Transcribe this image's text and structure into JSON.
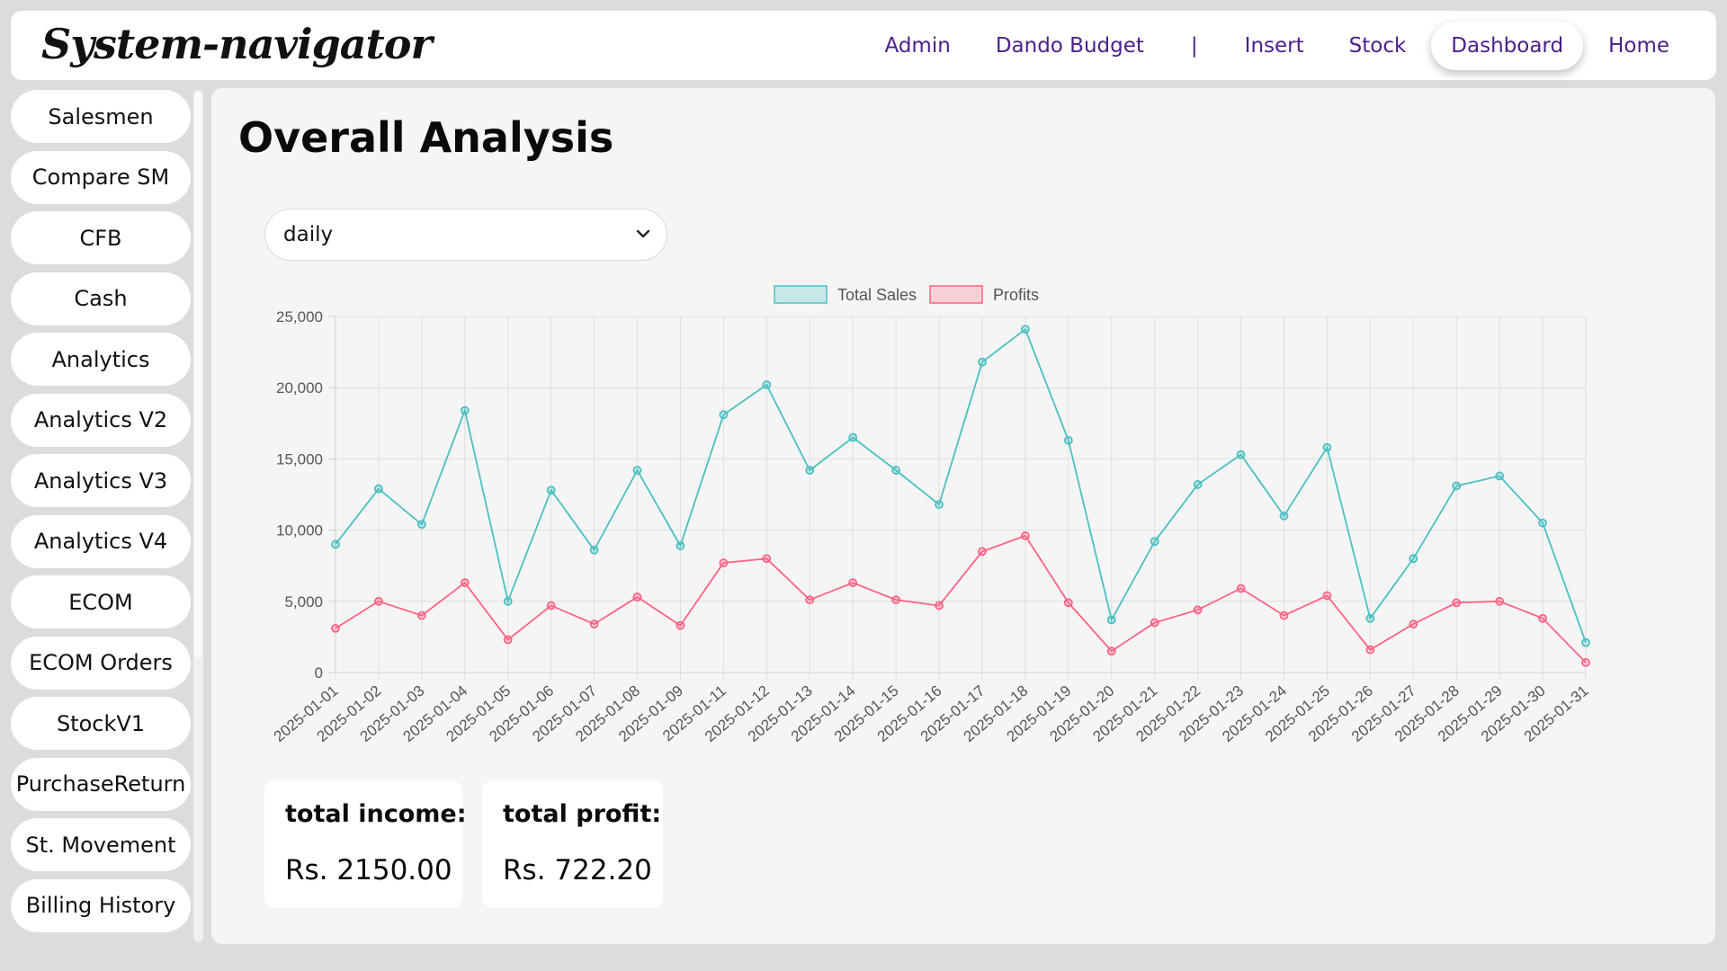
{
  "app": {
    "brand": "System-navigator"
  },
  "nav": {
    "items": [
      "Admin",
      "Dando Budget",
      "|",
      "Insert",
      "Stock",
      "Dashboard",
      "Home"
    ],
    "active": "Dashboard"
  },
  "sidebar": {
    "items": [
      "Salesmen",
      "Compare SM",
      "CFB",
      "Cash",
      "Analytics",
      "Analytics V2",
      "Analytics V3",
      "Analytics V4",
      "ECOM",
      "ECOM Orders",
      "StockV1",
      "PurchaseReturn",
      "St. Movement",
      "Billing History"
    ]
  },
  "main": {
    "title": "Overall Analysis",
    "period_select": {
      "value": "daily"
    },
    "stats": {
      "income_label": "total income:",
      "income_value": "Rs. 2150.00",
      "profit_label": "total profit:",
      "profit_value": "Rs. 722.20"
    }
  },
  "colors": {
    "accent_nav": "#4b1f8c",
    "sales_line": "#4bc0c0",
    "profit_line": "#ff6384"
  },
  "icons": {
    "select_chevron": "chevron-down-icon"
  },
  "chart_data": {
    "type": "line",
    "title": "",
    "xlabel": "",
    "ylabel": "",
    "ylim": [
      0,
      25000
    ],
    "yticks": [
      0,
      5000,
      10000,
      15000,
      20000,
      25000
    ],
    "ytick_labels": [
      "0",
      "5,000",
      "10,000",
      "15,000",
      "20,000",
      "25,000"
    ],
    "legend_position": "top",
    "grid": true,
    "categories": [
      "2025-01-01",
      "2025-01-02",
      "2025-01-03",
      "2025-01-04",
      "2025-01-05",
      "2025-01-06",
      "2025-01-07",
      "2025-01-08",
      "2025-01-09",
      "2025-01-11",
      "2025-01-12",
      "2025-01-13",
      "2025-01-14",
      "2025-01-15",
      "2025-01-16",
      "2025-01-17",
      "2025-01-18",
      "2025-01-19",
      "2025-01-20",
      "2025-01-21",
      "2025-01-22",
      "2025-01-23",
      "2025-01-24",
      "2025-01-25",
      "2025-01-26",
      "2025-01-27",
      "2025-01-28",
      "2025-01-29",
      "2025-01-30",
      "2025-01-31"
    ],
    "series": [
      {
        "name": "Total Sales",
        "color": "#4bc0c0",
        "fill": "rgba(75,192,192,0.25)",
        "values": [
          9000,
          12900,
          10400,
          18400,
          5000,
          12800,
          8600,
          14200,
          8900,
          18100,
          20200,
          14200,
          16500,
          14200,
          11800,
          21800,
          24100,
          16300,
          3700,
          9200,
          13200,
          15300,
          11000,
          15800,
          3800,
          8000,
          13100,
          13800,
          10500,
          2100
        ]
      },
      {
        "name": "Profits",
        "color": "#ff6384",
        "fill": "rgba(255,99,132,0.25)",
        "values": [
          3100,
          5000,
          4000,
          6300,
          2300,
          4700,
          3400,
          5300,
          3300,
          7700,
          8000,
          5100,
          6300,
          5100,
          4700,
          8500,
          9600,
          4900,
          1500,
          3500,
          4400,
          5900,
          4000,
          5400,
          1600,
          3400,
          4900,
          5000,
          3800,
          700
        ]
      }
    ]
  }
}
